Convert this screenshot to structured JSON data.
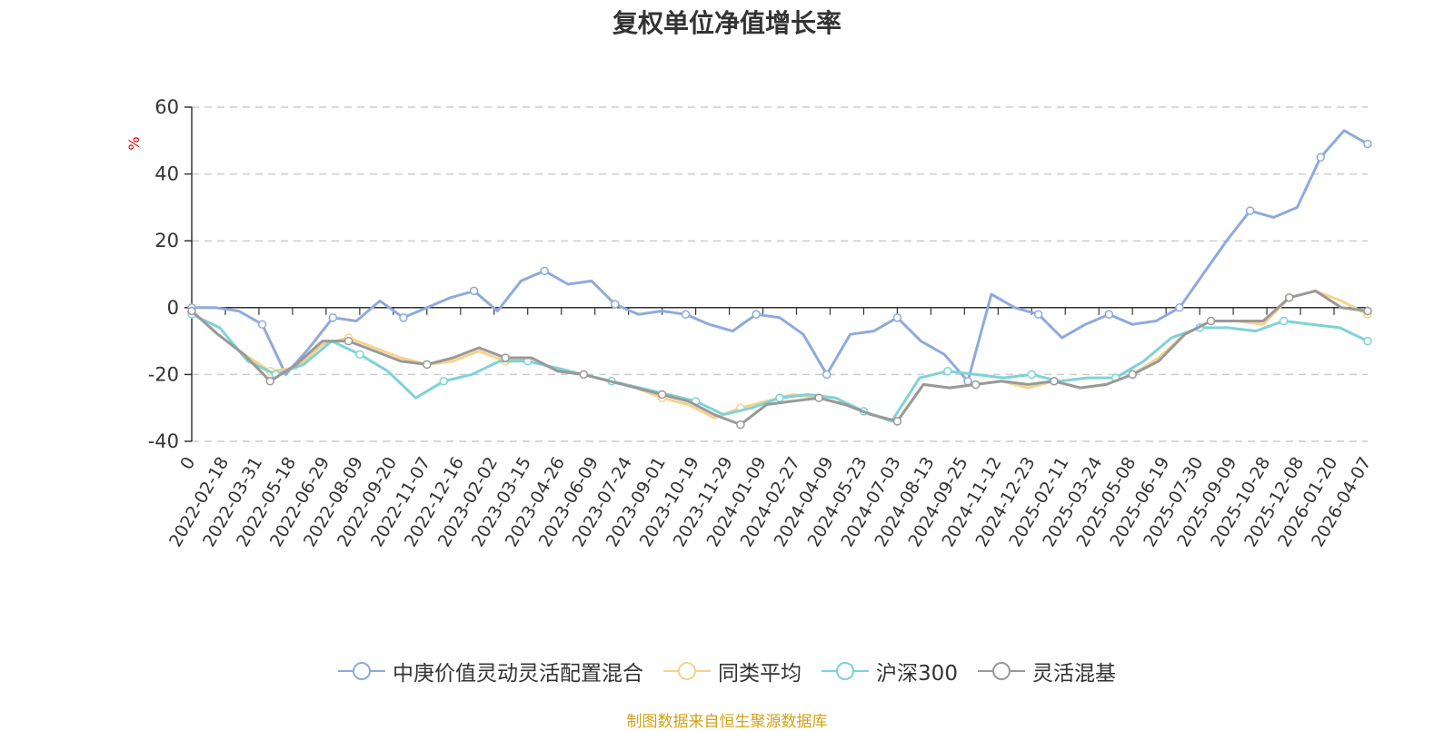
{
  "chart_data": {
    "type": "line",
    "title": "复权单位净值增长率",
    "ylabel": "%",
    "xlabel": "",
    "ylim": [
      -40,
      60
    ],
    "yticks": [
      60,
      40,
      20,
      0,
      -20,
      -40
    ],
    "grid": true,
    "legend_position": "bottom",
    "x_tick_labels": [
      "0",
      "2022-02-18",
      "2022-03-31",
      "2022-05-18",
      "2022-06-29",
      "2022-08-09",
      "2022-09-20",
      "2022-11-07",
      "2022-12-16",
      "2023-02-02",
      "2023-03-15",
      "2023-04-26",
      "2023-06-09",
      "2023-07-24",
      "2023-09-01",
      "2023-10-19",
      "2023-11-29",
      "2024-01-09",
      "2024-02-27",
      "2024-04-09",
      "2024-05-23",
      "2024-07-03",
      "2024-08-13",
      "2024-09-25",
      "2024-11-12",
      "2024-12-23",
      "2025-02-11",
      "2025-03-24",
      "2025-05-08",
      "2025-06-19",
      "2025-07-30",
      "2025-09-09",
      "2025-10-28",
      "2025-12-08",
      "2026-01-20",
      "2026-04-07"
    ],
    "series": [
      {
        "name": "中庚价值灵动灵活配置混合",
        "color": "#8eaadb",
        "values": [
          0,
          0,
          -1,
          -5,
          -20,
          -12,
          -3,
          -4,
          2,
          -3,
          0,
          3,
          5,
          -1,
          8,
          11,
          7,
          8,
          1,
          -2,
          -1,
          -2,
          -5,
          -7,
          -2,
          -3,
          -8,
          -20,
          -8,
          -7,
          -3,
          -10,
          -14,
          -22,
          4,
          0,
          -2,
          -9,
          -5,
          -2,
          -5,
          -4,
          0,
          10,
          20,
          29,
          27,
          30,
          45,
          53,
          49
        ]
      },
      {
        "name": "同类平均",
        "color": "#f7d28c",
        "values": [
          -1,
          -8,
          -14,
          -19,
          -18,
          -11,
          -9,
          -12,
          -15,
          -17,
          -16,
          -13,
          -16,
          -15,
          -19,
          -20,
          -22,
          -24,
          -27,
          -29,
          -33,
          -30,
          -28,
          -26,
          -27,
          -29,
          -32,
          -34,
          -23,
          -24,
          -23,
          -22,
          -24,
          -22,
          -24,
          -23,
          -20,
          -15,
          -8,
          -4,
          -4,
          -5,
          3,
          5,
          2,
          -2
        ]
      },
      {
        "name": "沪深300",
        "color": "#7dd3d8",
        "values": [
          -2,
          -6,
          -16,
          -20,
          -17,
          -10,
          -14,
          -19,
          -27,
          -22,
          -20,
          -16,
          -16,
          -18,
          -20,
          -22,
          -24,
          -26,
          -28,
          -32,
          -30,
          -27,
          -26,
          -27,
          -31,
          -34,
          -21,
          -19,
          -20,
          -21,
          -20,
          -22,
          -21,
          -21,
          -16,
          -9,
          -6,
          -6,
          -7,
          -4,
          -5,
          -6,
          -10
        ]
      },
      {
        "name": "灵活混基",
        "color": "#999999",
        "values": [
          -1,
          -8,
          -14,
          -22,
          -17,
          -10,
          -10,
          -13,
          -16,
          -17,
          -15,
          -12,
          -15,
          -15,
          -19,
          -20,
          -22,
          -24,
          -26,
          -28,
          -32,
          -35,
          -29,
          -28,
          -27,
          -29,
          -32,
          -34,
          -23,
          -24,
          -23,
          -22,
          -23,
          -22,
          -24,
          -23,
          -20,
          -16,
          -8,
          -4,
          -4,
          -4,
          3,
          5,
          0,
          -1
        ]
      }
    ]
  },
  "legend": {
    "items": [
      "中庚价值灵动灵活配置混合",
      "同类平均",
      "沪深300",
      "灵活混基"
    ]
  },
  "source_note": "制图数据来自恒生聚源数据库"
}
